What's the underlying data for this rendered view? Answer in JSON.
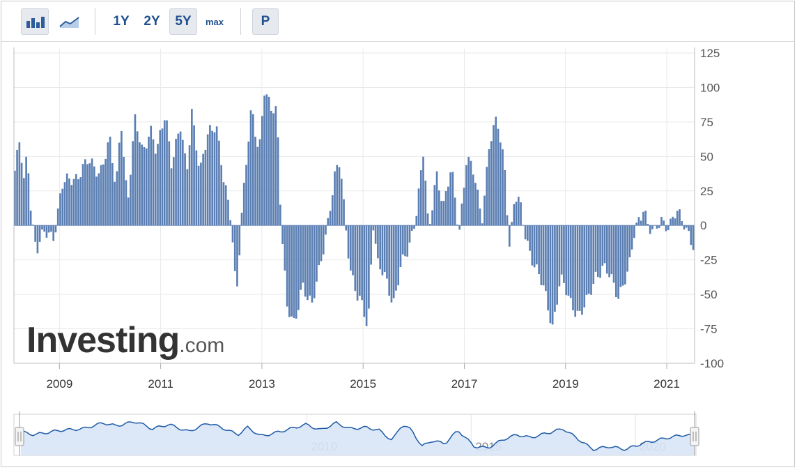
{
  "toolbar": {
    "buttons": [
      {
        "name": "bar-chart-button",
        "icon": "bar-chart-icon",
        "active": true
      },
      {
        "name": "line-chart-button",
        "icon": "line-chart-icon",
        "active": false
      }
    ],
    "ranges": [
      {
        "label": "1Y",
        "active": false
      },
      {
        "label": "2Y",
        "active": false
      },
      {
        "label": "5Y",
        "active": true
      },
      {
        "label": "max",
        "active": false
      }
    ],
    "p_label": "P"
  },
  "brand": {
    "name": "Investing",
    "suffix": ".com"
  },
  "colors": {
    "bar": "#5b7fb3",
    "nav_line": "#1d5aa6",
    "nav_fill": "#d8e6f7",
    "axis": "#999999"
  },
  "chart_data": {
    "type": "bar",
    "title": "",
    "xlabel": "",
    "ylabel": "",
    "ylim": [
      -100,
      125
    ],
    "yticks": [
      125,
      100,
      75,
      50,
      25,
      0,
      -25,
      -50,
      -75,
      -100
    ],
    "xticks": [
      "2009",
      "2011",
      "2013",
      "2015",
      "2017",
      "2019",
      "2021"
    ],
    "xrange": [
      2008.1,
      2021.55
    ],
    "keyframes": [
      [
        2008.1,
        35
      ],
      [
        2008.22,
        60
      ],
      [
        2008.3,
        30
      ],
      [
        2008.37,
        55
      ],
      [
        2008.45,
        8
      ],
      [
        2008.55,
        -18
      ],
      [
        2008.7,
        -7
      ],
      [
        2008.9,
        -6
      ],
      [
        2009.05,
        28
      ],
      [
        2009.3,
        35
      ],
      [
        2009.55,
        45
      ],
      [
        2009.8,
        40
      ],
      [
        2010.0,
        60
      ],
      [
        2010.12,
        25
      ],
      [
        2010.22,
        80
      ],
      [
        2010.35,
        15
      ],
      [
        2010.5,
        75
      ],
      [
        2010.65,
        55
      ],
      [
        2010.8,
        70
      ],
      [
        2010.92,
        50
      ],
      [
        2011.1,
        85
      ],
      [
        2011.22,
        45
      ],
      [
        2011.4,
        70
      ],
      [
        2011.52,
        40
      ],
      [
        2011.62,
        85
      ],
      [
        2011.78,
        35
      ],
      [
        2011.95,
        70
      ],
      [
        2012.1,
        75
      ],
      [
        2012.25,
        30
      ],
      [
        2012.4,
        5
      ],
      [
        2012.5,
        -50
      ],
      [
        2012.6,
        5
      ],
      [
        2012.8,
        85
      ],
      [
        2012.95,
        55
      ],
      [
        2013.05,
        98
      ],
      [
        2013.18,
        82
      ],
      [
        2013.3,
        85
      ],
      [
        2013.38,
        10
      ],
      [
        2013.5,
        -60
      ],
      [
        2013.65,
        -75
      ],
      [
        2013.8,
        -40
      ],
      [
        2014.0,
        -60
      ],
      [
        2014.15,
        -30
      ],
      [
        2014.28,
        -2
      ],
      [
        2014.45,
        35
      ],
      [
        2014.55,
        45
      ],
      [
        2014.65,
        5
      ],
      [
        2014.75,
        -30
      ],
      [
        2014.9,
        -55
      ],
      [
        2015.0,
        -60
      ],
      [
        2015.1,
        -75
      ],
      [
        2015.2,
        5
      ],
      [
        2015.3,
        -30
      ],
      [
        2015.45,
        -40
      ],
      [
        2015.6,
        -55
      ],
      [
        2015.75,
        -30
      ],
      [
        2015.9,
        -20
      ],
      [
        2016.05,
        10
      ],
      [
        2016.2,
        55
      ],
      [
        2016.3,
        -10
      ],
      [
        2016.45,
        40
      ],
      [
        2016.6,
        15
      ],
      [
        2016.75,
        40
      ],
      [
        2016.9,
        -5
      ],
      [
        2017.05,
        50
      ],
      [
        2017.2,
        35
      ],
      [
        2017.35,
        5
      ],
      [
        2017.5,
        60
      ],
      [
        2017.65,
        75
      ],
      [
        2017.8,
        45
      ],
      [
        2017.9,
        -15
      ],
      [
        2018.0,
        20
      ],
      [
        2018.1,
        15
      ],
      [
        2018.2,
        -5
      ],
      [
        2018.4,
        -30
      ],
      [
        2018.6,
        -50
      ],
      [
        2018.75,
        -72
      ],
      [
        2018.9,
        -40
      ],
      [
        2019.1,
        -55
      ],
      [
        2019.3,
        -65
      ],
      [
        2019.45,
        -55
      ],
      [
        2019.6,
        -35
      ],
      [
        2019.75,
        -30
      ],
      [
        2019.9,
        -40
      ],
      [
        2020.05,
        -50
      ],
      [
        2020.15,
        -40
      ],
      [
        2020.25,
        -35
      ],
      [
        2020.35,
        -10
      ],
      [
        2020.45,
        5
      ],
      [
        2020.55,
        15
      ],
      [
        2020.65,
        -2
      ],
      [
        2020.75,
        -8
      ],
      [
        2020.9,
        5
      ],
      [
        2021.05,
        0
      ],
      [
        2021.2,
        8
      ],
      [
        2021.35,
        2
      ],
      [
        2021.45,
        -5
      ],
      [
        2021.55,
        -18
      ]
    ]
  },
  "navigator": {
    "labels": [
      "2010",
      "2015",
      "2020"
    ],
    "label_years": [
      2010,
      2015,
      2020
    ],
    "range": [
      2001.3,
      2021.8
    ],
    "keyframes": [
      [
        2001.3,
        98
      ],
      [
        2001.7,
        96
      ],
      [
        2002.5,
        99
      ],
      [
        2003.2,
        100
      ],
      [
        2003.8,
        104
      ],
      [
        2004.2,
        102
      ],
      [
        2004.8,
        105
      ],
      [
        2005.3,
        100
      ],
      [
        2005.8,
        103
      ],
      [
        2006.4,
        98
      ],
      [
        2007.0,
        104
      ],
      [
        2007.5,
        100
      ],
      [
        2007.9,
        96
      ],
      [
        2008.2,
        101
      ],
      [
        2008.6,
        95
      ],
      [
        2009.0,
        97
      ],
      [
        2009.5,
        100
      ],
      [
        2010.0,
        103
      ],
      [
        2010.4,
        99
      ],
      [
        2010.9,
        104
      ],
      [
        2011.3,
        100
      ],
      [
        2011.8,
        101
      ],
      [
        2012.2,
        99
      ],
      [
        2012.6,
        92
      ],
      [
        2012.9,
        103
      ],
      [
        2013.2,
        99
      ],
      [
        2013.5,
        88
      ],
      [
        2013.8,
        92
      ],
      [
        2014.2,
        90
      ],
      [
        2014.6,
        99
      ],
      [
        2015.1,
        88
      ],
      [
        2015.5,
        87
      ],
      [
        2016.0,
        93
      ],
      [
        2016.4,
        96
      ],
      [
        2016.8,
        94
      ],
      [
        2017.3,
        97
      ],
      [
        2017.8,
        100
      ],
      [
        2018.2,
        94
      ],
      [
        2018.7,
        86
      ],
      [
        2019.2,
        88
      ],
      [
        2019.7,
        86
      ],
      [
        2020.2,
        90
      ],
      [
        2020.6,
        92
      ],
      [
        2021.0,
        94
      ],
      [
        2021.5,
        96
      ],
      [
        2021.8,
        95
      ]
    ]
  }
}
